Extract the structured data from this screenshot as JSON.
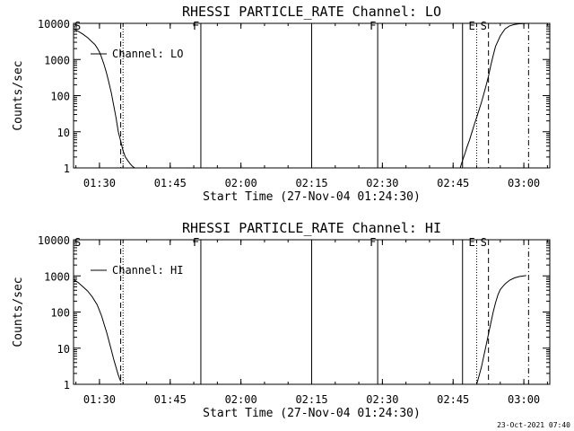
{
  "footer_date": "23-Oct-2021 07:40",
  "chart_data": [
    {
      "type": "line",
      "title": "RHESSI PARTICLE_RATE Channel: LO",
      "xlabel": "Start Time (27-Nov-04 01:24:30)",
      "ylabel": "Counts/sec",
      "ylog": true,
      "xlim": [
        "01:24:30",
        "03:05:30"
      ],
      "ylim": [
        1,
        10000
      ],
      "x_ticks": [
        "01:30",
        "01:45",
        "02:00",
        "02:15",
        "02:30",
        "02:45",
        "03:00"
      ],
      "y_ticks": [
        "1",
        "10",
        "100",
        "1000",
        "10000"
      ],
      "grid": false,
      "legend": {
        "label": "Channel: LO",
        "position": "top-left"
      },
      "series": [
        {
          "name": "Channel: LO",
          "segments": [
            {
              "x": [
                "01:24:30",
                "01:25:30",
                "01:26:30",
                "01:27:30",
                "01:28:30",
                "01:29:00",
                "01:29:30",
                "01:30:00",
                "01:30:30",
                "01:31:00",
                "01:31:30",
                "01:32:00",
                "01:32:30",
                "01:33:00",
                "01:33:30",
                "01:34:00",
                "01:34:30",
                "01:35:00",
                "01:35:30",
                "01:36:00",
                "01:36:30",
                "01:37:00",
                "01:37:30"
              ],
              "y": [
                7000,
                6000,
                5000,
                4000,
                3000,
                2600,
                2100,
                1600,
                1100,
                700,
                420,
                230,
                120,
                55,
                25,
                10,
                5.5,
                3,
                2,
                1.6,
                1.3,
                1.1,
                1
              ]
            },
            {
              "x": [
                "02:46:30",
                "02:47:00",
                "02:47:30",
                "02:48:00",
                "02:48:30",
                "02:49:00",
                "02:49:30",
                "02:50:00",
                "02:50:30",
                "02:51:00",
                "02:51:30",
                "02:52:00",
                "02:52:30",
                "02:53:00",
                "02:53:30",
                "02:54:00",
                "02:55:00",
                "02:56:00",
                "02:57:00",
                "02:58:00",
                "02:59:00",
                "03:00:00",
                "03:01:00"
              ],
              "y": [
                1,
                1.6,
                2.5,
                4,
                6,
                10,
                16,
                25,
                40,
                65,
                110,
                190,
                350,
                700,
                1300,
                2300,
                4500,
                7000,
                8500,
                9300,
                9700,
                9900,
                10000
              ]
            }
          ]
        }
      ],
      "markers": [
        {
          "time": "01:34:30",
          "style": "dashed"
        },
        {
          "time": "01:35:00",
          "style": "dotted"
        },
        {
          "time": "01:51:30",
          "style": "solid",
          "label": "F"
        },
        {
          "time": "02:15:00",
          "style": "solid"
        },
        {
          "time": "02:29:00",
          "style": "solid",
          "label": "F"
        },
        {
          "time": "02:47:00",
          "style": "solid"
        },
        {
          "time": "02:50:00",
          "style": "dotted",
          "label": "E"
        },
        {
          "time": "02:52:30",
          "style": "dashed",
          "label": "S"
        },
        {
          "time": "03:01:00",
          "style": "dashdot"
        }
      ],
      "top_left_label": "S"
    },
    {
      "type": "line",
      "title": "RHESSI PARTICLE_RATE Channel: HI",
      "xlabel": "Start Time (27-Nov-04 01:24:30)",
      "ylabel": "Counts/sec",
      "ylog": true,
      "xlim": [
        "01:24:30",
        "03:05:30"
      ],
      "ylim": [
        1,
        10000
      ],
      "x_ticks": [
        "01:30",
        "01:45",
        "02:00",
        "02:15",
        "02:30",
        "02:45",
        "03:00"
      ],
      "y_ticks": [
        "1",
        "10",
        "100",
        "1000",
        "10000"
      ],
      "grid": false,
      "legend": {
        "label": "Channel: HI",
        "position": "top-left"
      },
      "series": [
        {
          "name": "Channel: HI",
          "segments": [
            {
              "x": [
                "01:24:30",
                "01:25:30",
                "01:26:30",
                "01:27:30",
                "01:28:30",
                "01:29:30",
                "01:30:00",
                "01:30:30",
                "01:31:00",
                "01:31:30",
                "01:32:00",
                "01:32:30",
                "01:33:00",
                "01:33:30",
                "01:34:00",
                "01:34:30"
              ],
              "y": [
                800,
                650,
                500,
                380,
                260,
                160,
                110,
                75,
                45,
                28,
                16,
                9,
                5,
                3,
                1.8,
                1.2
              ]
            },
            {
              "x": [
                "02:50:00",
                "02:50:30",
                "02:51:00",
                "02:51:30",
                "02:52:00",
                "02:52:30",
                "02:53:00",
                "02:53:30",
                "02:54:00",
                "02:54:30",
                "02:55:00",
                "02:56:00",
                "02:57:00",
                "02:58:00",
                "02:59:00",
                "03:00:00",
                "03:00:30"
              ],
              "y": [
                1,
                1.7,
                3,
                6,
                12,
                25,
                50,
                100,
                180,
                300,
                420,
                600,
                760,
                880,
                960,
                1000,
                1020
              ]
            }
          ]
        }
      ],
      "markers": [
        {
          "time": "01:34:30",
          "style": "dashed"
        },
        {
          "time": "01:35:00",
          "style": "dotted"
        },
        {
          "time": "01:51:30",
          "style": "solid",
          "label": "F"
        },
        {
          "time": "02:15:00",
          "style": "solid"
        },
        {
          "time": "02:29:00",
          "style": "solid",
          "label": "F"
        },
        {
          "time": "02:47:00",
          "style": "solid"
        },
        {
          "time": "02:50:00",
          "style": "dotted",
          "label": "E"
        },
        {
          "time": "02:52:30",
          "style": "dashed",
          "label": "S"
        },
        {
          "time": "03:01:00",
          "style": "dashdot"
        }
      ],
      "top_left_label": "S"
    }
  ]
}
